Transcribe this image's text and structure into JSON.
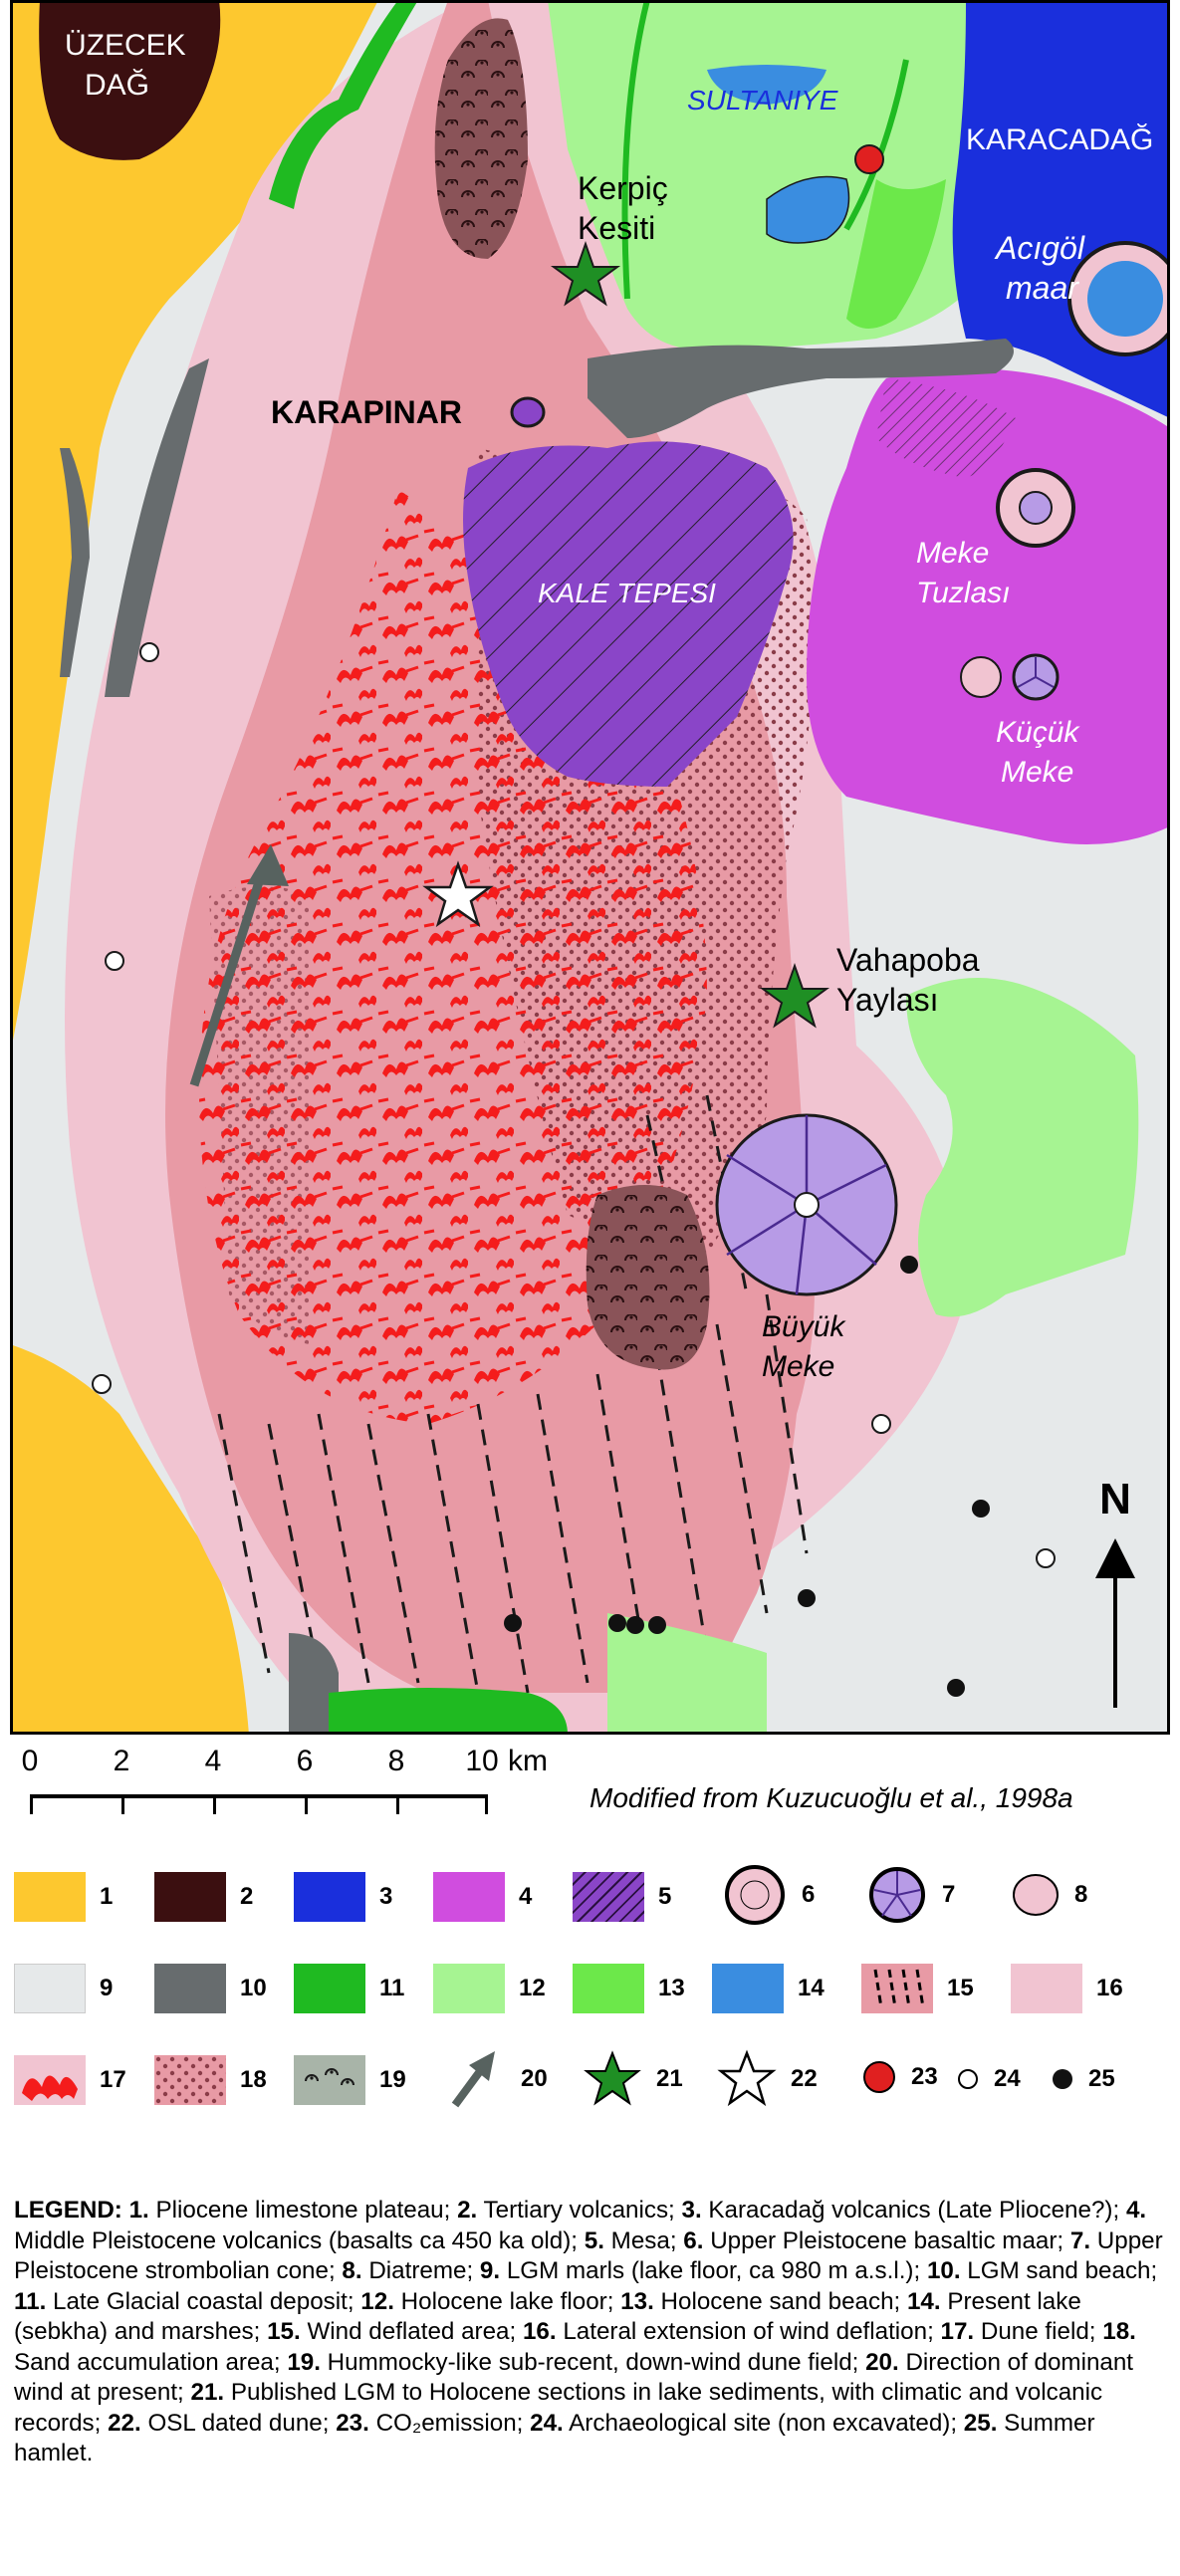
{
  "map": {
    "place_labels": {
      "uzecek_line1": "ÜZECEK",
      "uzecek_line2": "DAĞ",
      "sultaniye": "SULTANIYE",
      "karacadag": "KARACADAĞ",
      "kerpic_line1": "Kerpiç",
      "kerpic_line2": "Kesiti",
      "acigol_line1": "Acıgöl",
      "acigol_line2": "maar",
      "karapinar": "KARAPINAR",
      "kale_tepesi": "KALE TEPESI",
      "meke_tuzlasi_line1": "Meke",
      "meke_tuzlasi_line2": "Tuzlası",
      "kucuk_meke_line1": "Küçük",
      "kucuk_meke_line2": "Meke",
      "vahapoba_line1": "Vahapoba",
      "vahapoba_line2": "Yaylası",
      "buyuk_meke_line1": "Büyük",
      "buyuk_meke_line2": "Meke"
    },
    "north_label": "N",
    "colors": {
      "limestone": "#fdc82f",
      "tertiary_volcanics": "#3b0f10",
      "karacadag_volcanics": "#1a2fdc",
      "middle_pleistocene": "#d04ddf",
      "lgm_marls": "#e6e9ea",
      "lgm_beach": "#676c6e",
      "late_glacial": "#1fba21",
      "holocene_floor": "#a6f492",
      "holocene_beach": "#6ce84a",
      "present_lake": "#3a8de0",
      "lateral_deflation": "#f1c4d1",
      "sand_accumulation": "#e89aa5",
      "dune": "#f41c1c",
      "mesa": "#8a45c8",
      "hummocky": "#8a5358"
    }
  },
  "scale": {
    "ticks": [
      "0",
      "2",
      "4",
      "6",
      "8",
      "10"
    ],
    "unit": "km",
    "citation": "Modified from Kuzucuoğlu et al., 1998a"
  },
  "legend_keys": [
    {
      "num": "1",
      "icon": "yellow-swatch"
    },
    {
      "num": "2",
      "icon": "dark-brown-swatch"
    },
    {
      "num": "3",
      "icon": "blue-swatch"
    },
    {
      "num": "4",
      "icon": "magenta-swatch"
    },
    {
      "num": "5",
      "icon": "mesa-hatched-swatch"
    },
    {
      "num": "6",
      "icon": "maar-icon"
    },
    {
      "num": "7",
      "icon": "strombolian-cone-icon"
    },
    {
      "num": "8",
      "icon": "diatreme-icon"
    },
    {
      "num": "9",
      "icon": "light-grey-swatch"
    },
    {
      "num": "10",
      "icon": "dark-grey-swatch"
    },
    {
      "num": "11",
      "icon": "green-swatch"
    },
    {
      "num": "12",
      "icon": "pale-green-swatch"
    },
    {
      "num": "13",
      "icon": "bright-green-swatch"
    },
    {
      "num": "14",
      "icon": "light-blue-swatch"
    },
    {
      "num": "15",
      "icon": "wind-deflated-swatch"
    },
    {
      "num": "16",
      "icon": "pale-pink-swatch"
    },
    {
      "num": "17",
      "icon": "dune-swatch"
    },
    {
      "num": "18",
      "icon": "dotted-pink-swatch"
    },
    {
      "num": "19",
      "icon": "hummocky-swatch"
    },
    {
      "num": "20",
      "icon": "wind-arrow-icon"
    },
    {
      "num": "21",
      "icon": "green-star-icon"
    },
    {
      "num": "22",
      "icon": "white-star-icon"
    },
    {
      "num": "23",
      "icon": "red-dot-icon"
    },
    {
      "num": "24",
      "icon": "white-dot-icon"
    },
    {
      "num": "25",
      "icon": "black-dot-icon"
    }
  ],
  "legend_text": {
    "heading": "LEGEND:",
    "items": [
      {
        "n": "1.",
        "t": "Pliocene limestone plateau;"
      },
      {
        "n": "2.",
        "t": "Tertiary volcanics;"
      },
      {
        "n": "3.",
        "t": "Karacadağ volcanics (Late Pliocene?);"
      },
      {
        "n": "4.",
        "t": "Middle Pleistocene volcanics (basalts ca 450 ka old);"
      },
      {
        "n": "5.",
        "t": "Mesa;"
      },
      {
        "n": "6.",
        "t": "Upper Pleistocene basaltic maar;"
      },
      {
        "n": "7.",
        "t": "Upper Pleistocene strombolian cone;"
      },
      {
        "n": "8.",
        "t": "Diatreme;"
      },
      {
        "n": "9.",
        "t": "LGM marls (lake floor, ca 980 m a.s.l.);"
      },
      {
        "n": "10.",
        "t": "LGM sand beach;"
      },
      {
        "n": "11.",
        "t": "Late Glacial coastal deposit;"
      },
      {
        "n": "12.",
        "t": "Holocene lake floor;"
      },
      {
        "n": "13.",
        "t": "Holocene sand beach;"
      },
      {
        "n": "14.",
        "t": "Present lake (sebkha) and marshes;"
      },
      {
        "n": "15.",
        "t": "Wind deflated area;"
      },
      {
        "n": "16.",
        "t": "Lateral extension of wind deflation;"
      },
      {
        "n": "17.",
        "t": "Dune field;"
      },
      {
        "n": "18.",
        "t": "Sand accumulation area;"
      },
      {
        "n": "19.",
        "t": "Hummocky-like sub-recent, down-wind dune field;"
      },
      {
        "n": "20.",
        "t": "Direction of dominant wind at present;"
      },
      {
        "n": "21.",
        "t": "Published LGM to Holocene sections in lake sediments, with climatic and volcanic records;"
      },
      {
        "n": "22.",
        "t": "OSL dated dune;"
      },
      {
        "n": "23.",
        "t": "CO₂emission;"
      },
      {
        "n": "24.",
        "t": "Archaeological site (non excavated);"
      },
      {
        "n": "25.",
        "t": "Summer hamlet."
      }
    ]
  }
}
